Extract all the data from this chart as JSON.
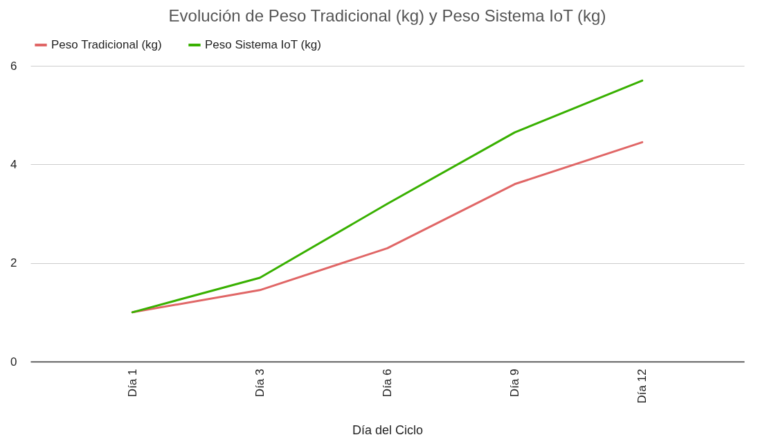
{
  "chart_data": {
    "type": "line",
    "title": "Evolución de Peso Tradicional (kg) y Peso Sistema IoT (kg)",
    "xlabel": "Día del Ciclo",
    "categories": [
      "Día 1",
      "Día 3",
      "Día 6",
      "Día 9",
      "Día 12"
    ],
    "series": [
      {
        "name": "Peso Tradicional (kg)",
        "color": "#e06666",
        "values": [
          1.0,
          1.45,
          2.3,
          3.6,
          4.45
        ]
      },
      {
        "name": "Peso Sistema IoT (kg)",
        "color": "#38b000",
        "values": [
          1.0,
          1.7,
          3.2,
          4.65,
          5.7
        ]
      }
    ],
    "ylim": [
      0,
      6
    ],
    "yticks": [
      0,
      2,
      4,
      6
    ],
    "grid": "y",
    "legend": "top",
    "marker": "none",
    "line_style": "solid"
  }
}
